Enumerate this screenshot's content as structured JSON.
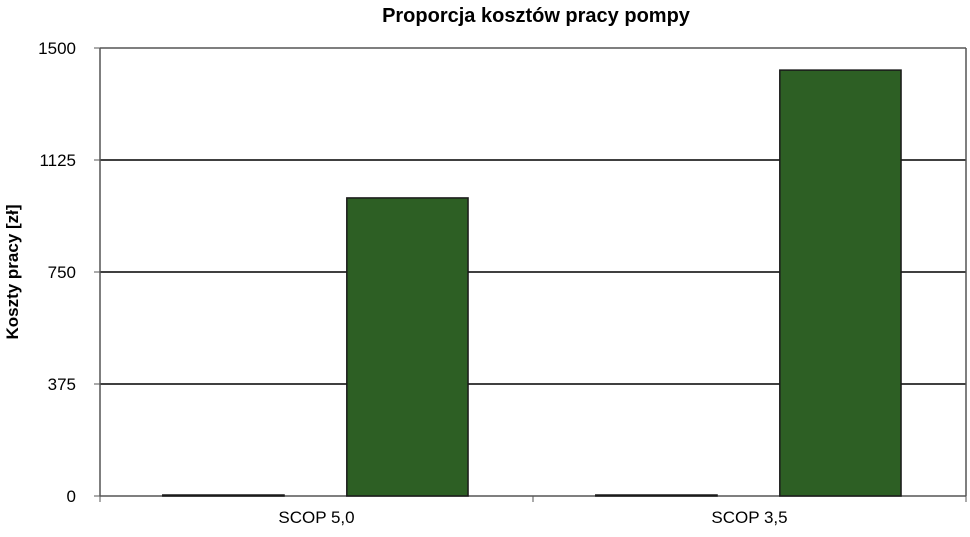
{
  "chart_data": {
    "type": "bar",
    "title": "Proporcja kosztów pracy pompy",
    "xlabel": "",
    "ylabel": "Koszty pracy [zł]",
    "categories": [
      "SCOP 5,0",
      "SCOP 3,5"
    ],
    "series": [
      {
        "values": [
          0,
          0
        ],
        "color": "#2d5f24"
      },
      {
        "values": [
          998,
          1426
        ],
        "color": "#2d5f24"
      }
    ],
    "ylim": [
      0,
      1500
    ],
    "yticks": [
      "0",
      "375",
      "750",
      "1125",
      "1500"
    ],
    "grid": true,
    "legend": "none"
  }
}
